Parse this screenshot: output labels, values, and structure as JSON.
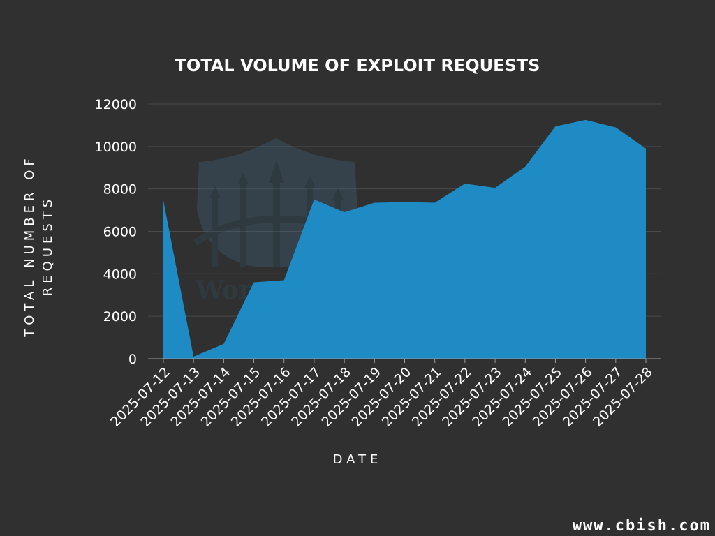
{
  "colors": {
    "background": "#303030",
    "area_fill": "#1f8bc4",
    "text": "#ffffff",
    "grid": "#4a4a4a"
  },
  "watermark": "www.cbish.com",
  "chart_data": {
    "type": "area",
    "title": "TOTAL VOLUME OF EXPLOIT REQUESTS",
    "xlabel": "DATE",
    "ylabel": [
      "TOTAL NUMBER OF",
      "REQUESTS"
    ],
    "ylim": [
      0,
      12000
    ],
    "yticks": [
      0,
      2000,
      4000,
      6000,
      8000,
      10000,
      12000
    ],
    "grid": "horizontal",
    "legend": "none",
    "x": [
      "2025-07-12",
      "2025-07-13",
      "2025-07-14",
      "2025-07-15",
      "2025-07-16",
      "2025-07-17",
      "2025-07-18",
      "2025-07-19",
      "2025-07-20",
      "2025-07-21",
      "2025-07-22",
      "2025-07-23",
      "2025-07-24",
      "2025-07-25",
      "2025-07-26",
      "2025-07-27",
      "2025-07-28"
    ],
    "values": [
      7450,
      100,
      700,
      3600,
      3700,
      7500,
      6900,
      7350,
      7380,
      7350,
      8250,
      8050,
      9050,
      10950,
      11250,
      10900,
      9900
    ]
  }
}
